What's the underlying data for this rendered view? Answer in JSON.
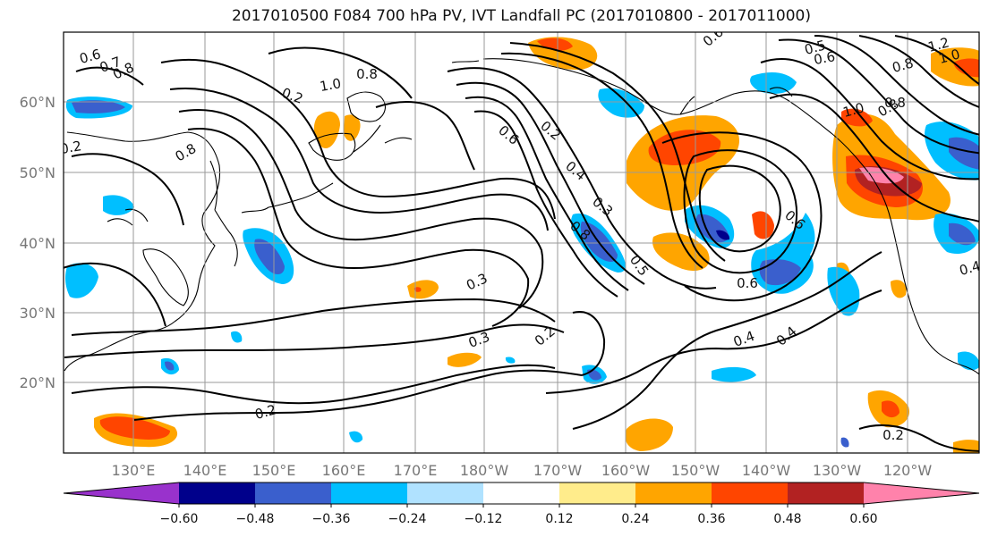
{
  "title": "2017010500 F084 700 hPa PV, IVT Landfall PC (2017010800 - 2017011000)",
  "lat_labels": [
    "60°N",
    "50°N",
    "40°N",
    "30°N",
    "20°N"
  ],
  "lon_labels": [
    "130°E",
    "140°E",
    "150°E",
    "160°E",
    "170°E",
    "180°W",
    "170°W",
    "160°W",
    "150°W",
    "140°W",
    "130°W",
    "120°W"
  ],
  "colorbar": {
    "colors": [
      "#9932cc",
      "#00008b",
      "#3a5fcd",
      "#00bfff",
      "#b0e2ff",
      "#ffffff",
      "#ffec8b",
      "#ffa500",
      "#ff4500",
      "#b22222",
      "#ff82ab"
    ],
    "tick_labels": [
      "−0.60",
      "−0.48",
      "−0.36",
      "−0.24",
      "−0.12",
      "0.12",
      "0.24",
      "0.36",
      "0.48",
      "0.60"
    ]
  },
  "contour_labels": [
    "0.6",
    "0.7",
    "0.8",
    "1.0",
    "0.8",
    "0.2",
    "0.6",
    "0.2",
    "0.4",
    "0.3",
    "0.8",
    "0.5",
    "0.3",
    "0.3",
    "0.2",
    "0.2",
    "0.6",
    "0.4",
    "0.4",
    "0.6",
    "0.8",
    "1.0",
    "0.5",
    "0.6",
    "0.8",
    "1.2",
    "1.0",
    "0.8",
    "0.2",
    "0.6",
    "0.8",
    "0.4",
    "0.2"
  ]
}
